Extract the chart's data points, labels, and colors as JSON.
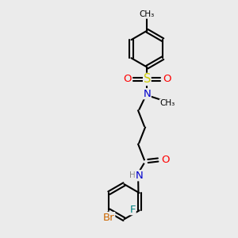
{
  "bg_color": "#ebebeb",
  "bond_color": "#000000",
  "bond_width": 1.5,
  "atom_colors": {
    "N": "#0000cd",
    "O": "#ff0000",
    "S": "#cccc00",
    "F": "#008080",
    "Br": "#cc6600",
    "C": "#000000"
  },
  "font_size": 8.5,
  "fig_size": [
    3.0,
    3.0
  ],
  "dpi": 100,
  "xlim": [
    0,
    10
  ],
  "ylim": [
    0,
    10
  ]
}
